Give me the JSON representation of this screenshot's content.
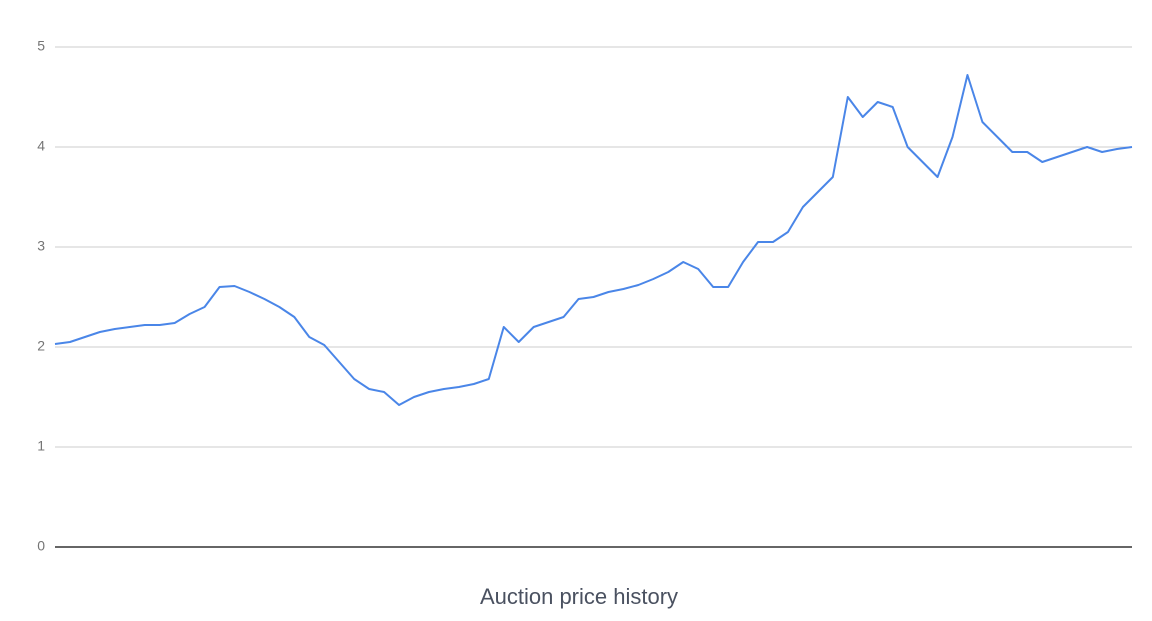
{
  "chart_data": {
    "type": "line",
    "title": "Auction price history",
    "series": [
      {
        "name": "Auction price",
        "color": "#4a86e8",
        "values": [
          2.03,
          2.05,
          2.1,
          2.15,
          2.18,
          2.2,
          2.22,
          2.22,
          2.24,
          2.33,
          2.4,
          2.6,
          2.61,
          2.55,
          2.48,
          2.4,
          2.3,
          2.1,
          2.02,
          1.85,
          1.68,
          1.58,
          1.55,
          1.42,
          1.5,
          1.55,
          1.58,
          1.6,
          1.63,
          1.68,
          2.2,
          2.05,
          2.2,
          2.25,
          2.3,
          2.48,
          2.5,
          2.55,
          2.58,
          2.62,
          2.68,
          2.75,
          2.85,
          2.78,
          2.6,
          2.6,
          2.85,
          3.05,
          3.05,
          3.15,
          3.4,
          3.55,
          3.7,
          4.5,
          4.3,
          4.45,
          4.4,
          4.0,
          3.85,
          3.7,
          4.1,
          4.72,
          4.25,
          4.1,
          3.95,
          3.95,
          3.85,
          3.9,
          3.95,
          4.0,
          3.95,
          3.98,
          4.0
        ]
      }
    ],
    "ylim": [
      0,
      5
    ],
    "yticks": [
      0,
      1,
      2,
      3,
      4,
      5
    ],
    "grid": true
  }
}
